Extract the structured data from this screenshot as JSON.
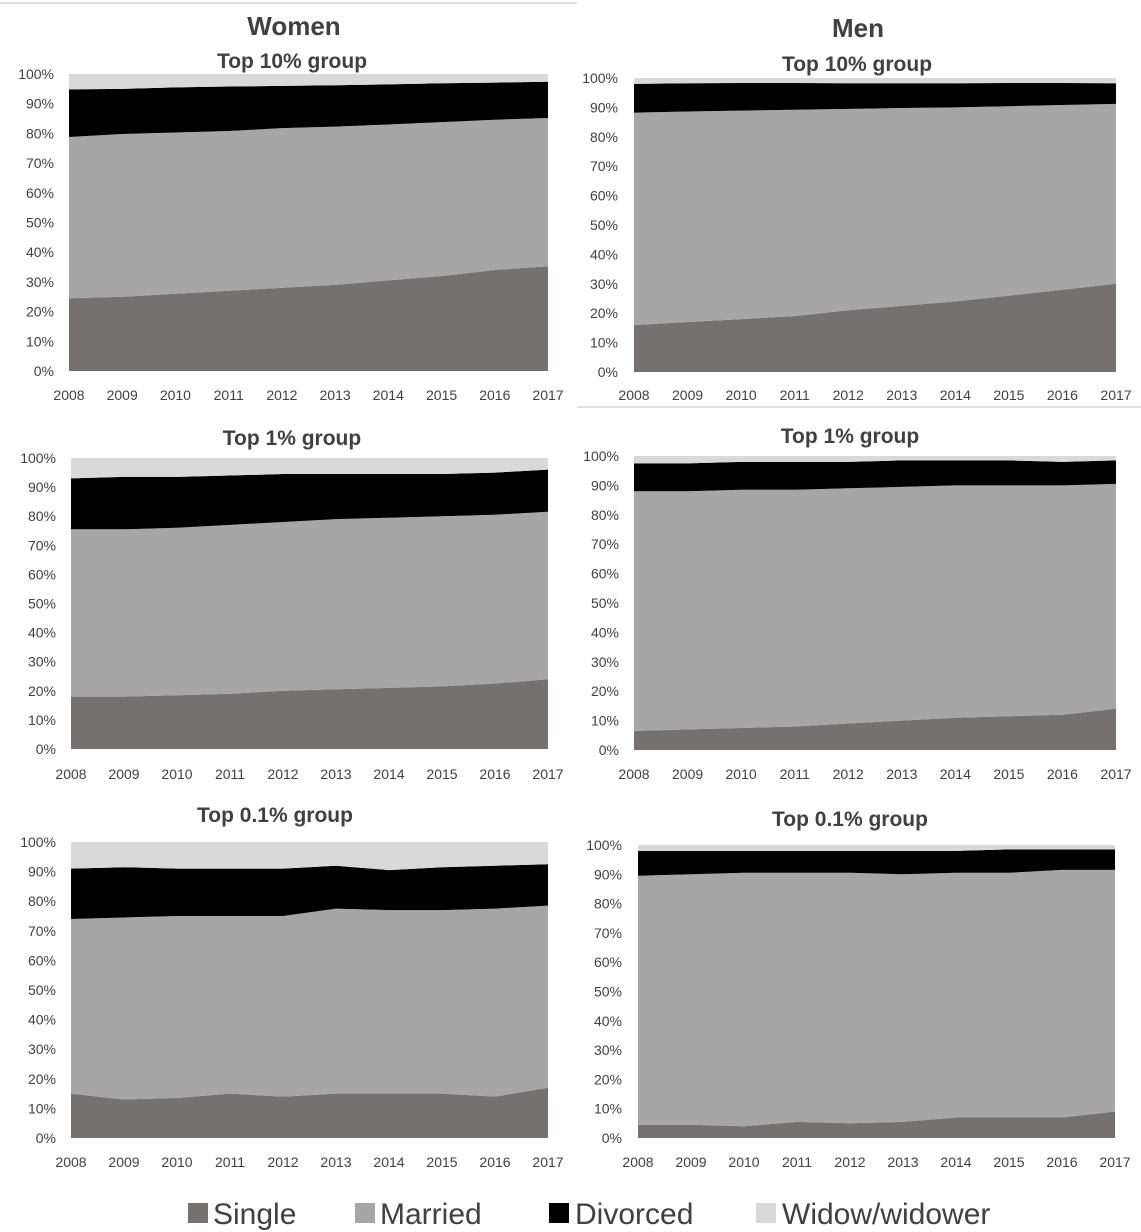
{
  "column_titles": [
    "Women",
    "Men"
  ],
  "legend": [
    {
      "label": "Single",
      "color": "#767171"
    },
    {
      "label": "Married",
      "color": "#a6a6a6"
    },
    {
      "label": "Divorced",
      "color": "#000000"
    },
    {
      "label": "Widow/widower",
      "color": "#d9d9d9"
    }
  ],
  "chart_data": [
    {
      "type": "area",
      "stacked": true,
      "column": "Women",
      "title": "Top 10% group",
      "categories": [
        "2008",
        "2009",
        "2010",
        "2011",
        "2012",
        "2013",
        "2014",
        "2015",
        "2016",
        "2017"
      ],
      "yticks": [
        "0%",
        "10%",
        "20%",
        "30%",
        "40%",
        "50%",
        "60%",
        "70%",
        "80%",
        "90%",
        "100%"
      ],
      "ylim": [
        0,
        100
      ],
      "series": [
        {
          "name": "Single",
          "values": [
            24.5,
            25,
            26,
            27,
            28,
            29,
            30.5,
            32,
            34,
            35.3
          ]
        },
        {
          "name": "Married",
          "values": [
            54.3,
            54.8,
            54.3,
            53.8,
            53.8,
            53.3,
            52.5,
            51.8,
            50.6,
            49.9
          ]
        },
        {
          "name": "Divorced",
          "values": [
            16,
            15.2,
            15.2,
            15,
            14.2,
            13.9,
            13.5,
            13.1,
            12.5,
            12.2
          ]
        },
        {
          "name": "Widow/widower",
          "values": [
            5.2,
            5,
            4.5,
            4.2,
            4,
            3.8,
            3.5,
            3.1,
            2.9,
            2.6
          ]
        }
      ]
    },
    {
      "type": "area",
      "stacked": true,
      "column": "Men",
      "title": "Top 10% group",
      "categories": [
        "2008",
        "2009",
        "2010",
        "2011",
        "2012",
        "2013",
        "2014",
        "2015",
        "2016",
        "2017"
      ],
      "yticks": [
        "0%",
        "10%",
        "20%",
        "30%",
        "40%",
        "50%",
        "60%",
        "70%",
        "80%",
        "90%",
        "100%"
      ],
      "ylim": [
        0,
        100
      ],
      "series": [
        {
          "name": "Single",
          "values": [
            16,
            17,
            18,
            19,
            21,
            22.5,
            24,
            26,
            28,
            30
          ]
        },
        {
          "name": "Married",
          "values": [
            72.2,
            71.6,
            70.9,
            70.2,
            68.5,
            67.3,
            66,
            64.4,
            62.8,
            61.2
          ]
        },
        {
          "name": "Divorced",
          "values": [
            9.8,
            9.6,
            9.4,
            9.1,
            8.7,
            8.4,
            8.2,
            7.9,
            7.5,
            7
          ]
        },
        {
          "name": "Widow/widower",
          "values": [
            2,
            1.8,
            1.7,
            1.7,
            1.8,
            1.8,
            1.8,
            1.7,
            1.7,
            1.8
          ]
        }
      ]
    },
    {
      "type": "area",
      "stacked": true,
      "column": "Women",
      "title": "Top 1% group",
      "categories": [
        "2008",
        "2009",
        "2010",
        "2011",
        "2012",
        "2013",
        "2014",
        "2015",
        "2016",
        "2017"
      ],
      "yticks": [
        "0%",
        "10%",
        "20%",
        "30%",
        "40%",
        "50%",
        "60%",
        "70%",
        "80%",
        "90%",
        "100%"
      ],
      "ylim": [
        0,
        100
      ],
      "series": [
        {
          "name": "Single",
          "values": [
            18,
            18,
            18.5,
            19,
            20,
            20.5,
            21,
            21.5,
            22.5,
            24
          ]
        },
        {
          "name": "Married",
          "values": [
            57.5,
            57.5,
            57.5,
            58,
            58,
            58.5,
            58.5,
            58.5,
            58,
            57.5
          ]
        },
        {
          "name": "Divorced",
          "values": [
            17.5,
            18,
            17.5,
            17,
            16.5,
            15.5,
            15,
            14.5,
            14.5,
            14.5
          ]
        },
        {
          "name": "Widow/widower",
          "values": [
            7,
            6.5,
            6.5,
            6,
            5.5,
            5.5,
            5.5,
            5.5,
            5,
            4
          ]
        }
      ]
    },
    {
      "type": "area",
      "stacked": true,
      "column": "Men",
      "title": "Top 1% group",
      "categories": [
        "2008",
        "2009",
        "2010",
        "2011",
        "2012",
        "2013",
        "2014",
        "2015",
        "2016",
        "2017"
      ],
      "yticks": [
        "0%",
        "10%",
        "20%",
        "30%",
        "40%",
        "50%",
        "60%",
        "70%",
        "80%",
        "90%",
        "100%"
      ],
      "ylim": [
        0,
        100
      ],
      "series": [
        {
          "name": "Single",
          "values": [
            6.5,
            7,
            7.5,
            8,
            9,
            10,
            11,
            11.5,
            12,
            14
          ]
        },
        {
          "name": "Married",
          "values": [
            81.5,
            81,
            81,
            80.5,
            80,
            79.5,
            79,
            78.5,
            78,
            76.5
          ]
        },
        {
          "name": "Divorced",
          "values": [
            9.5,
            9.5,
            9.5,
            9.5,
            9,
            9,
            8.5,
            8.5,
            8,
            8
          ]
        },
        {
          "name": "Widow/widower",
          "values": [
            2.5,
            2.5,
            2,
            2,
            2,
            1.5,
            1.5,
            1.5,
            2,
            1.5
          ]
        }
      ]
    },
    {
      "type": "area",
      "stacked": true,
      "column": "Women",
      "title": "Top 0.1% group",
      "categories": [
        "2008",
        "2009",
        "2010",
        "2011",
        "2012",
        "2013",
        "2014",
        "2015",
        "2016",
        "2017"
      ],
      "yticks": [
        "0%",
        "10%",
        "20%",
        "30%",
        "40%",
        "50%",
        "60%",
        "70%",
        "80%",
        "90%",
        "100%"
      ],
      "ylim": [
        0,
        100
      ],
      "series": [
        {
          "name": "Single",
          "values": [
            15,
            13,
            13.5,
            15,
            14,
            15,
            15,
            15,
            14,
            17
          ]
        },
        {
          "name": "Married",
          "values": [
            59,
            61.5,
            61.5,
            60,
            61,
            62.5,
            62,
            62,
            63.5,
            61.5
          ]
        },
        {
          "name": "Divorced",
          "values": [
            17,
            17,
            16,
            16,
            16,
            14.5,
            13.5,
            14.5,
            14.5,
            14
          ]
        },
        {
          "name": "Widow/widower",
          "values": [
            9,
            8.5,
            9,
            9,
            9,
            8,
            9.5,
            8.5,
            8,
            7.5
          ]
        }
      ]
    },
    {
      "type": "area",
      "stacked": true,
      "column": "Men",
      "title": "Top 0.1% group",
      "categories": [
        "2008",
        "2009",
        "2010",
        "2011",
        "2012",
        "2013",
        "2014",
        "2015",
        "2016",
        "2017"
      ],
      "yticks": [
        "0%",
        "10%",
        "20%",
        "30%",
        "40%",
        "50%",
        "60%",
        "70%",
        "80%",
        "90%",
        "100%"
      ],
      "ylim": [
        0,
        100
      ],
      "series": [
        {
          "name": "Single",
          "values": [
            4.5,
            4.5,
            4,
            5.5,
            5,
            5.5,
            7,
            7,
            7,
            9
          ]
        },
        {
          "name": "Married",
          "values": [
            85,
            85.5,
            86.5,
            85,
            85.5,
            84.5,
            83.5,
            83.5,
            84.5,
            82.5
          ]
        },
        {
          "name": "Divorced",
          "values": [
            8.5,
            8,
            7.5,
            7.5,
            7.5,
            8,
            7.5,
            8,
            7,
            7
          ]
        },
        {
          "name": "Widow/widower",
          "values": [
            2,
            2,
            2,
            2,
            2,
            2,
            2,
            1.5,
            1.5,
            1.5
          ]
        }
      ]
    }
  ]
}
